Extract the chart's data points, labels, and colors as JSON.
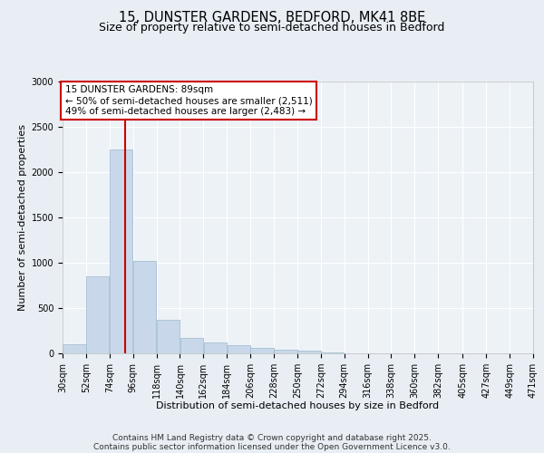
{
  "title": "15, DUNSTER GARDENS, BEDFORD, MK41 8BE",
  "subtitle": "Size of property relative to semi-detached houses in Bedford",
  "xlabel": "Distribution of semi-detached houses by size in Bedford",
  "ylabel": "Number of semi-detached properties",
  "bin_labels": [
    "30sqm",
    "52sqm",
    "74sqm",
    "96sqm",
    "118sqm",
    "140sqm",
    "162sqm",
    "184sqm",
    "206sqm",
    "228sqm",
    "250sqm",
    "272sqm",
    "294sqm",
    "316sqm",
    "338sqm",
    "360sqm",
    "382sqm",
    "405sqm",
    "427sqm",
    "449sqm",
    "471sqm"
  ],
  "bin_edges": [
    30,
    52,
    74,
    96,
    118,
    140,
    162,
    184,
    206,
    228,
    250,
    272,
    294,
    316,
    338,
    360,
    382,
    405,
    427,
    449,
    471
  ],
  "bar_values": [
    100,
    850,
    2250,
    1025,
    375,
    175,
    125,
    90,
    60,
    40,
    30,
    10,
    5,
    2,
    1,
    1,
    0,
    0,
    0,
    0
  ],
  "bar_color": "#c8d8ea",
  "bar_edgecolor": "#9ab8cc",
  "property_size": 89,
  "property_line_color": "#cc0000",
  "annotation_line1": "15 DUNSTER GARDENS: 89sqm",
  "annotation_line2": "← 50% of semi-detached houses are smaller (2,511)",
  "annotation_line3": "49% of semi-detached houses are larger (2,483) →",
  "annotation_box_color": "#cc0000",
  "ylim": [
    0,
    3000
  ],
  "yticks": [
    0,
    500,
    1000,
    1500,
    2000,
    2500,
    3000
  ],
  "background_color": "#e8eef4",
  "plot_background": "#edf2f7",
  "grid_color": "#ffffff",
  "footer_line1": "Contains HM Land Registry data © Crown copyright and database right 2025.",
  "footer_line2": "Contains public sector information licensed under the Open Government Licence v3.0.",
  "title_fontsize": 10.5,
  "subtitle_fontsize": 9,
  "footer_fontsize": 6.5,
  "annotation_fontsize": 7.5,
  "axis_label_fontsize": 8,
  "tick_fontsize": 7
}
